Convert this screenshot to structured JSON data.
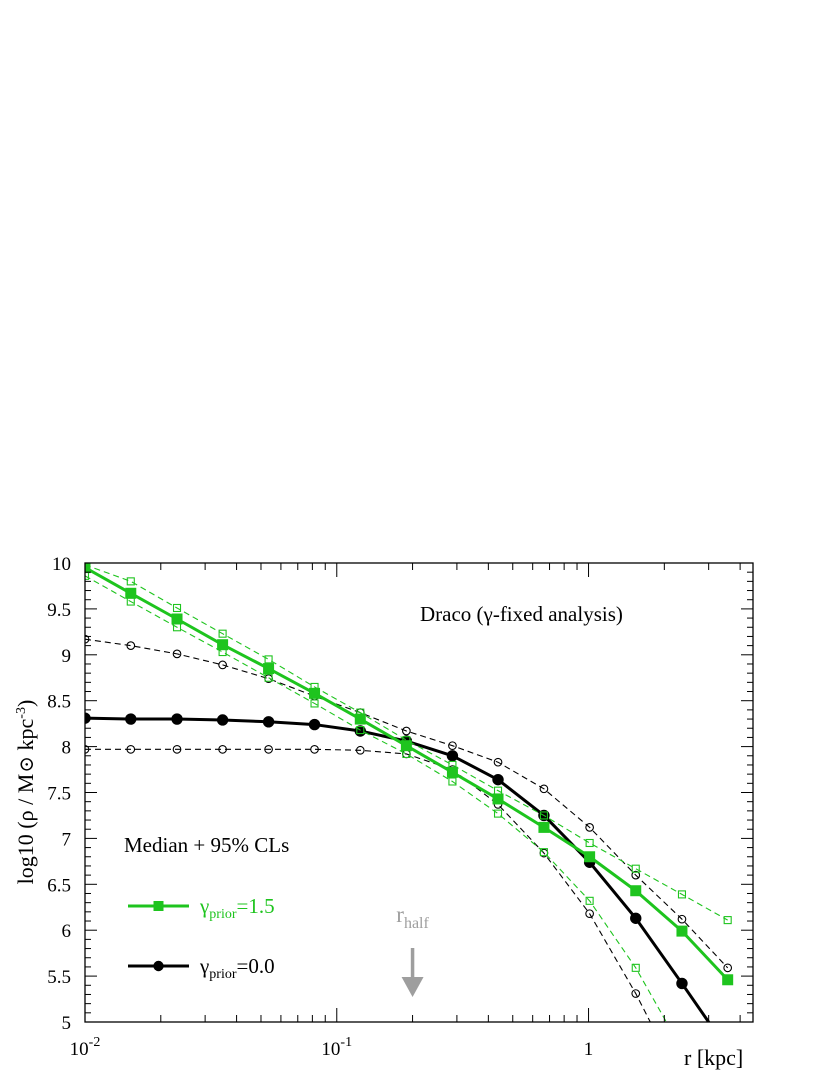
{
  "chart_data": {
    "type": "line",
    "annotation": "Draco (γ-fixed analysis)",
    "xlabel": "r [kpc]",
    "ylabel": "log10 (ρ / M☉ kpc⁻³)",
    "x_scale": "log",
    "xlim": [
      0.01,
      4.5
    ],
    "ylim": [
      5,
      10
    ],
    "x_ticks": [
      {
        "value": 0.01,
        "base": "10",
        "exp": "-2"
      },
      {
        "value": 0.1,
        "base": "10",
        "exp": "-1"
      },
      {
        "value": 1,
        "base": "1",
        "exp": ""
      }
    ],
    "y_ticks": [
      5,
      5.5,
      6,
      6.5,
      7,
      7.5,
      8,
      8.5,
      9,
      9.5,
      10
    ],
    "y_tick_labels": [
      "5",
      "5.5",
      "6",
      "6.5",
      "7",
      "7.5",
      "8",
      "8.5",
      "9",
      "9.5",
      "10"
    ],
    "legend_title": "Median + 95% CLs",
    "legend_placement": "bottom-left",
    "colors": {
      "green": "#1ec41e",
      "black": "#000000",
      "rhalf": "#9e9e9e"
    },
    "rhalf": {
      "label": "r",
      "sub": "half",
      "x": 0.2
    },
    "series": [
      {
        "name": "γprior=1.5",
        "legend_main": "γ",
        "legend_sub": "prior",
        "legend_rest": "=1.5",
        "color": "#1ec41e",
        "marker": "square",
        "median": {
          "x": [
            0.01,
            0.0152,
            0.0232,
            0.0352,
            0.0536,
            0.0816,
            0.124,
            0.189,
            0.288,
            0.437,
            0.665,
            1.01,
            1.54,
            2.35,
            3.57
          ],
          "y": [
            9.95,
            9.67,
            9.39,
            9.11,
            8.85,
            8.58,
            8.3,
            8.01,
            7.72,
            7.43,
            7.12,
            6.8,
            6.43,
            5.99,
            5.46
          ]
        },
        "upper": {
          "x": [
            0.01,
            0.0152,
            0.0232,
            0.0352,
            0.0536,
            0.0816,
            0.124,
            0.189,
            0.288,
            0.437,
            0.665,
            1.01,
            1.54,
            2.35,
            3.57
          ],
          "y": [
            9.98,
            9.8,
            9.51,
            9.23,
            8.95,
            8.65,
            8.37,
            8.07,
            7.8,
            7.52,
            7.25,
            6.95,
            6.67,
            6.39,
            6.11
          ]
        },
        "lower": {
          "x": [
            0.01,
            0.0152,
            0.0232,
            0.0352,
            0.0536,
            0.0816,
            0.124,
            0.189,
            0.288,
            0.437,
            0.665,
            1.01,
            1.54,
            2.35
          ],
          "y": [
            9.86,
            9.58,
            9.3,
            9.03,
            8.75,
            8.47,
            8.18,
            7.92,
            7.62,
            7.27,
            6.85,
            6.32,
            5.59,
            4.7
          ]
        }
      },
      {
        "name": "γprior=0.0",
        "legend_main": "γ",
        "legend_sub": "prior",
        "legend_rest": "=0.0",
        "color": "#000000",
        "marker": "circle",
        "median": {
          "x": [
            0.01,
            0.0152,
            0.0232,
            0.0352,
            0.0536,
            0.0816,
            0.124,
            0.189,
            0.288,
            0.437,
            0.665,
            1.01,
            1.54,
            2.35,
            3.57
          ],
          "y": [
            8.31,
            8.3,
            8.3,
            8.29,
            8.27,
            8.24,
            8.17,
            8.06,
            7.9,
            7.64,
            7.25,
            6.74,
            6.13,
            5.42,
            4.7
          ]
        },
        "upper": {
          "x": [
            0.01,
            0.0152,
            0.0232,
            0.0352,
            0.0536,
            0.0816,
            0.124,
            0.189,
            0.288,
            0.437,
            0.665,
            1.01,
            1.54,
            2.35,
            3.57
          ],
          "y": [
            9.17,
            9.1,
            9.01,
            8.89,
            8.74,
            8.55,
            8.37,
            8.17,
            8.01,
            7.83,
            7.54,
            7.12,
            6.6,
            6.12,
            5.59
          ]
        },
        "lower": {
          "x": [
            0.01,
            0.0152,
            0.0232,
            0.0352,
            0.0536,
            0.0816,
            0.124,
            0.189,
            0.288,
            0.437,
            0.665,
            1.01,
            1.54,
            2.0
          ],
          "y": [
            7.97,
            7.97,
            7.97,
            7.97,
            7.97,
            7.97,
            7.96,
            7.92,
            7.75,
            7.37,
            6.84,
            6.18,
            5.31,
            4.7
          ]
        }
      }
    ]
  }
}
